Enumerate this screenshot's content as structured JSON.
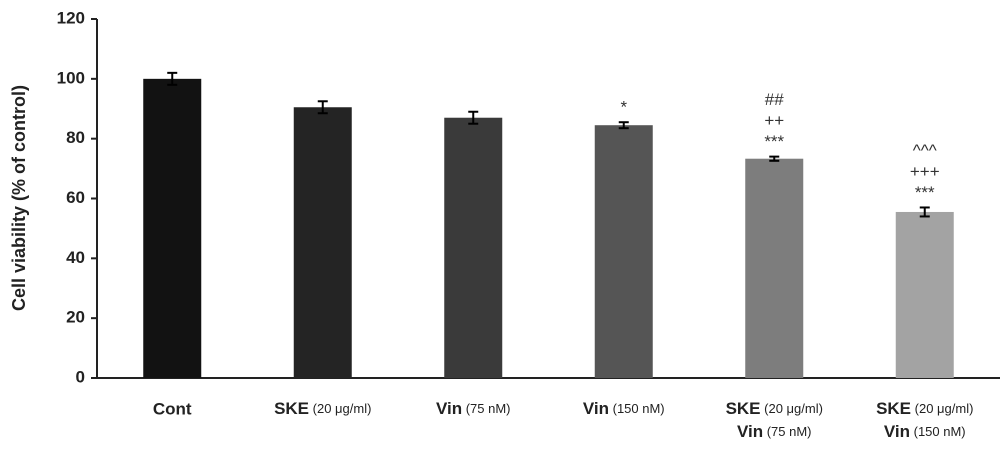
{
  "chart_data": {
    "type": "bar",
    "y_label": "Cell viability (% of control)",
    "categories": [
      [
        "Cont"
      ],
      [
        "SKE (20 μg/ml)"
      ],
      [
        "Vin (75 nM)"
      ],
      [
        "Vin (150 nM)"
      ],
      [
        "SKE (20 μg/ml)",
        "Vin (75 nM)"
      ],
      [
        "SKE (20 μg/ml)",
        "Vin (150 nM)"
      ]
    ],
    "values": [
      100,
      90.5,
      87,
      84.5,
      73.3,
      55.5
    ],
    "errors": [
      2,
      2,
      2,
      1,
      0.7,
      1.5
    ],
    "colors": [
      "#121212",
      "#242424",
      "#3a3a3a",
      "#555555",
      "#7d7d7d",
      "#a3a3a3"
    ],
    "annotations": [
      null,
      null,
      null,
      [
        "*"
      ],
      [
        "##",
        "++",
        "***"
      ],
      [
        "^^^",
        "+++",
        "***"
      ]
    ],
    "ylim": [
      0,
      120
    ],
    "yticks": [
      0,
      20,
      40,
      60,
      80,
      100,
      120
    ],
    "grid": false
  }
}
